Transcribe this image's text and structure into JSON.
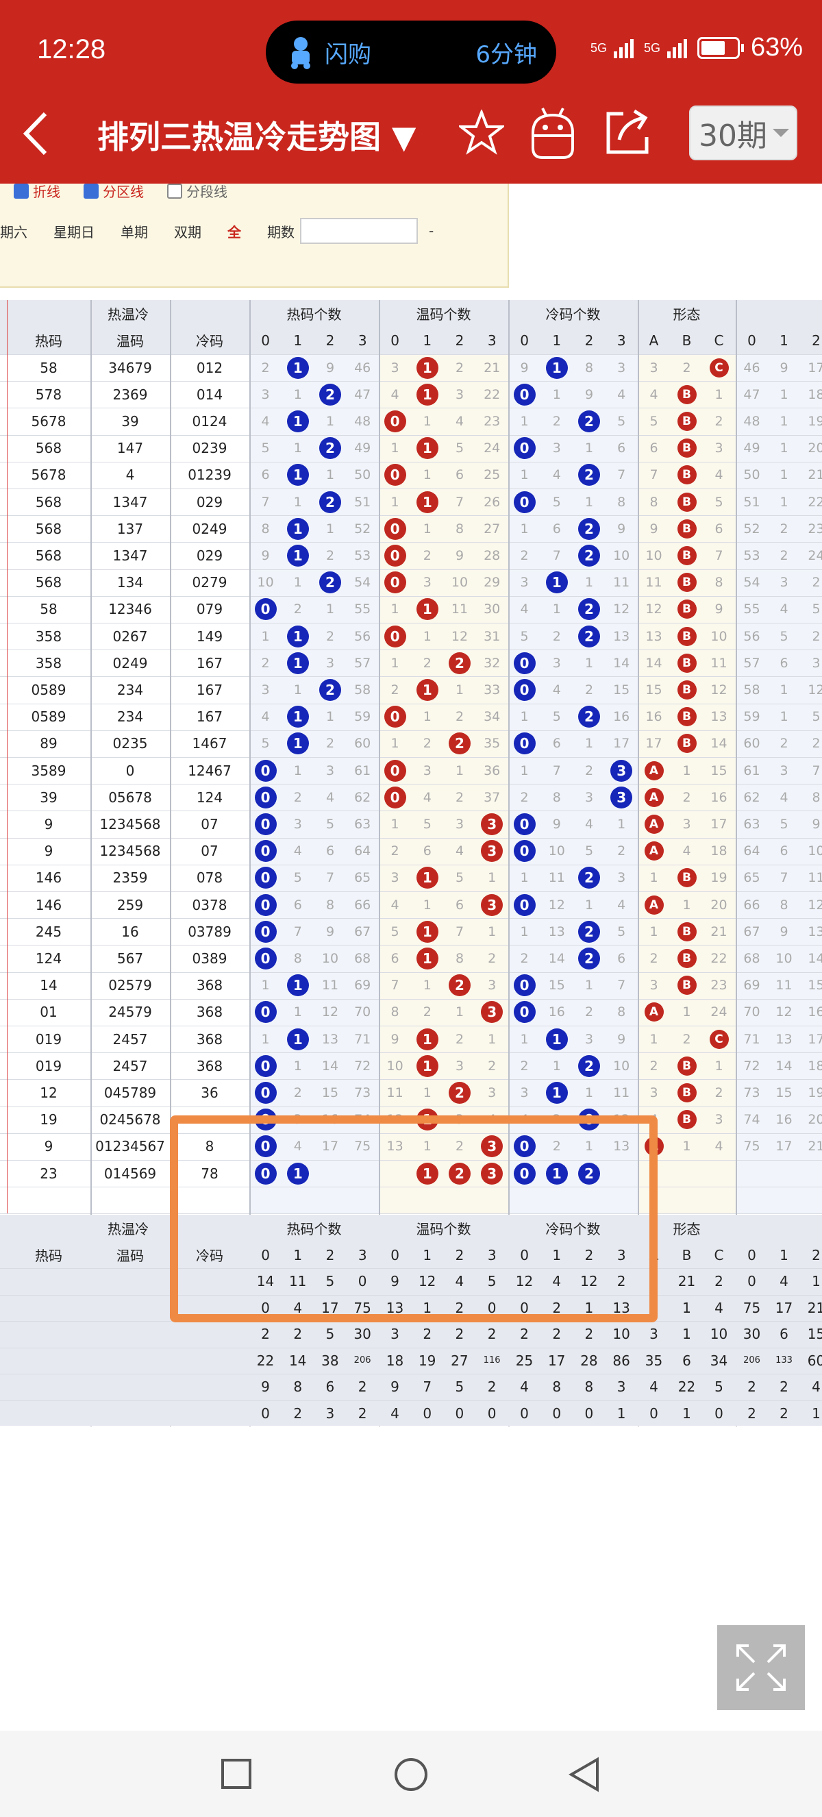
{
  "status": {
    "time": "12:28",
    "pill_app": "闪购",
    "pill_time": "6分钟",
    "battery": "63%",
    "net": "5G"
  },
  "header": {
    "title": "排列三热温冷走势图 ▼",
    "period": "30期"
  },
  "options": {
    "checkboxes": [
      {
        "label": "折线",
        "checked": true
      },
      {
        "label": "分区线",
        "checked": true
      },
      {
        "label": "分段线",
        "checked": false
      }
    ],
    "filters": [
      "期六",
      "星期日",
      "单期",
      "双期",
      "全"
    ],
    "active_filter": "全",
    "period_label": "期数",
    "range_sep": "-"
  },
  "table": {
    "groups": [
      "热温冷",
      "热码个数",
      "温码个数",
      "冷码个数",
      "形态"
    ],
    "col_labels": {
      "hot": "热码",
      "warm": "温码",
      "cold": "冷码",
      "shape": [
        "A",
        "B",
        "C"
      ],
      "digits": [
        "0",
        "1",
        "2",
        "3"
      ]
    },
    "rows": [
      {
        "hot": "58",
        "warm": "34679",
        "cold": "012",
        "hc": [
          "2",
          "1",
          "9",
          "46"
        ],
        "wc": [
          "3",
          "1",
          "2",
          "21"
        ],
        "cc": [
          "9",
          "1",
          "8",
          "3"
        ],
        "sh": [
          "3",
          "2",
          "C"
        ],
        "ex": [
          "46",
          "9",
          "17"
        ],
        "hb": 1,
        "wb": 1,
        "cb": 1,
        "sb": 2
      },
      {
        "hot": "578",
        "warm": "2369",
        "cold": "014",
        "hc": [
          "3",
          "1",
          "2",
          "47"
        ],
        "wc": [
          "4",
          "1",
          "3",
          "22"
        ],
        "cc": [
          "0",
          "1",
          "9",
          "4"
        ],
        "sh": [
          "4",
          "B",
          "1"
        ],
        "ex": [
          "47",
          "1",
          "18"
        ],
        "hb": 2,
        "wb": 1,
        "cb": 0,
        "sb": 1
      },
      {
        "hot": "5678",
        "warm": "39",
        "cold": "0124",
        "hc": [
          "4",
          "1",
          "1",
          "48"
        ],
        "wc": [
          "0",
          "1",
          "4",
          "23"
        ],
        "cc": [
          "1",
          "2",
          "2",
          "5"
        ],
        "sh": [
          "5",
          "B",
          "2"
        ],
        "ex": [
          "48",
          "1",
          "19"
        ],
        "hb": 1,
        "wb": 0,
        "cb": 2,
        "sb": 1
      },
      {
        "hot": "568",
        "warm": "147",
        "cold": "0239",
        "hc": [
          "5",
          "1",
          "2",
          "49"
        ],
        "wc": [
          "1",
          "1",
          "5",
          "24"
        ],
        "cc": [
          "0",
          "3",
          "1",
          "6"
        ],
        "sh": [
          "6",
          "B",
          "3"
        ],
        "ex": [
          "49",
          "1",
          "20"
        ],
        "hb": 2,
        "wb": 1,
        "cb": 0,
        "sb": 1
      },
      {
        "hot": "5678",
        "warm": "4",
        "cold": "01239",
        "hc": [
          "6",
          "1",
          "1",
          "50"
        ],
        "wc": [
          "0",
          "1",
          "6",
          "25"
        ],
        "cc": [
          "1",
          "4",
          "2",
          "7"
        ],
        "sh": [
          "7",
          "B",
          "4"
        ],
        "ex": [
          "50",
          "1",
          "21"
        ],
        "hb": 1,
        "wb": 0,
        "cb": 2,
        "sb": 1
      },
      {
        "hot": "568",
        "warm": "1347",
        "cold": "029",
        "hc": [
          "7",
          "1",
          "2",
          "51"
        ],
        "wc": [
          "1",
          "1",
          "7",
          "26"
        ],
        "cc": [
          "0",
          "5",
          "1",
          "8"
        ],
        "sh": [
          "8",
          "B",
          "5"
        ],
        "ex": [
          "51",
          "1",
          "22"
        ],
        "hb": 2,
        "wb": 1,
        "cb": 0,
        "sb": 1
      },
      {
        "hot": "568",
        "warm": "137",
        "cold": "0249",
        "hc": [
          "8",
          "1",
          "1",
          "52"
        ],
        "wc": [
          "0",
          "1",
          "8",
          "27"
        ],
        "cc": [
          "1",
          "6",
          "2",
          "9"
        ],
        "sh": [
          "9",
          "B",
          "6"
        ],
        "ex": [
          "52",
          "2",
          "23"
        ],
        "hb": 1,
        "wb": 0,
        "cb": 2,
        "sb": 1
      },
      {
        "hot": "568",
        "warm": "1347",
        "cold": "029",
        "hc": [
          "9",
          "1",
          "2",
          "53"
        ],
        "wc": [
          "0",
          "2",
          "9",
          "28"
        ],
        "cc": [
          "2",
          "7",
          "2",
          "10"
        ],
        "sh": [
          "10",
          "B",
          "7"
        ],
        "ex": [
          "53",
          "2",
          "24"
        ],
        "hb": 1,
        "wb": 0,
        "cb": 2,
        "sb": 1
      },
      {
        "hot": "568",
        "warm": "134",
        "cold": "0279",
        "hc": [
          "10",
          "1",
          "2",
          "54"
        ],
        "wc": [
          "0",
          "3",
          "10",
          "29"
        ],
        "cc": [
          "3",
          "1",
          "1",
          "11"
        ],
        "sh": [
          "11",
          "B",
          "8"
        ],
        "ex": [
          "54",
          "3",
          "2"
        ],
        "hb": 2,
        "wb": 0,
        "cb": 1,
        "sb": 1
      },
      {
        "hot": "58",
        "warm": "12346",
        "cold": "079",
        "hc": [
          "0",
          "2",
          "1",
          "55"
        ],
        "wc": [
          "1",
          "1",
          "11",
          "30"
        ],
        "cc": [
          "4",
          "1",
          "2",
          "12"
        ],
        "sh": [
          "12",
          "B",
          "9"
        ],
        "ex": [
          "55",
          "4",
          "5"
        ],
        "hb": 0,
        "wb": 1,
        "cb": 2,
        "sb": 1
      },
      {
        "hot": "358",
        "warm": "0267",
        "cold": "149",
        "hc": [
          "1",
          "1",
          "2",
          "56"
        ],
        "wc": [
          "0",
          "1",
          "12",
          "31"
        ],
        "cc": [
          "5",
          "2",
          "2",
          "13"
        ],
        "sh": [
          "13",
          "B",
          "10"
        ],
        "ex": [
          "56",
          "5",
          "2"
        ],
        "hb": 1,
        "wb": 0,
        "cb": 2,
        "sb": 1
      },
      {
        "hot": "358",
        "warm": "0249",
        "cold": "167",
        "hc": [
          "2",
          "1",
          "3",
          "57"
        ],
        "wc": [
          "1",
          "2",
          "2",
          "32"
        ],
        "cc": [
          "0",
          "3",
          "1",
          "14"
        ],
        "sh": [
          "14",
          "B",
          "11"
        ],
        "ex": [
          "57",
          "6",
          "3"
        ],
        "hb": 1,
        "wb": 2,
        "cb": 0,
        "sb": 1
      },
      {
        "hot": "0589",
        "warm": "234",
        "cold": "167",
        "hc": [
          "3",
          "1",
          "2",
          "58"
        ],
        "wc": [
          "2",
          "1",
          "1",
          "33"
        ],
        "cc": [
          "0",
          "4",
          "2",
          "15"
        ],
        "sh": [
          "15",
          "B",
          "12"
        ],
        "ex": [
          "58",
          "1",
          "12"
        ],
        "hb": 2,
        "wb": 1,
        "cb": 0,
        "sb": 1
      },
      {
        "hot": "0589",
        "warm": "234",
        "cold": "167",
        "hc": [
          "4",
          "1",
          "1",
          "59"
        ],
        "wc": [
          "0",
          "1",
          "2",
          "34"
        ],
        "cc": [
          "1",
          "5",
          "2",
          "16"
        ],
        "sh": [
          "16",
          "B",
          "13"
        ],
        "ex": [
          "59",
          "1",
          "5"
        ],
        "hb": 1,
        "wb": 0,
        "cb": 2,
        "sb": 1
      },
      {
        "hot": "89",
        "warm": "0235",
        "cold": "1467",
        "hc": [
          "5",
          "1",
          "2",
          "60"
        ],
        "wc": [
          "1",
          "2",
          "2",
          "35"
        ],
        "cc": [
          "0",
          "6",
          "1",
          "17"
        ],
        "sh": [
          "17",
          "B",
          "14"
        ],
        "ex": [
          "60",
          "2",
          "2"
        ],
        "hb": 1,
        "wb": 2,
        "cb": 0,
        "sb": 1
      },
      {
        "hot": "3589",
        "warm": "0",
        "cold": "12467",
        "hc": [
          "0",
          "1",
          "3",
          "61"
        ],
        "wc": [
          "0",
          "3",
          "1",
          "36"
        ],
        "cc": [
          "1",
          "7",
          "2",
          "3"
        ],
        "sh": [
          "A",
          "1",
          "15"
        ],
        "ex": [
          "61",
          "3",
          "7"
        ],
        "hb": 0,
        "wb": 0,
        "cb": 3,
        "sb": 0
      },
      {
        "hot": "39",
        "warm": "05678",
        "cold": "124",
        "hc": [
          "0",
          "2",
          "4",
          "62"
        ],
        "wc": [
          "0",
          "4",
          "2",
          "37"
        ],
        "cc": [
          "2",
          "8",
          "3",
          "3"
        ],
        "sh": [
          "A",
          "2",
          "16"
        ],
        "ex": [
          "62",
          "4",
          "8"
        ],
        "hb": 0,
        "wb": 0,
        "cb": 3,
        "sb": 0
      },
      {
        "hot": "9",
        "warm": "1234568",
        "cold": "07",
        "hc": [
          "0",
          "3",
          "5",
          "63"
        ],
        "wc": [
          "1",
          "5",
          "3",
          "3"
        ],
        "cc": [
          "0",
          "9",
          "4",
          "1"
        ],
        "sh": [
          "A",
          "3",
          "17"
        ],
        "ex": [
          "63",
          "5",
          "9"
        ],
        "hb": 0,
        "wb": 3,
        "cb": 0,
        "sb": 0
      },
      {
        "hot": "9",
        "warm": "1234568",
        "cold": "07",
        "hc": [
          "0",
          "4",
          "6",
          "64"
        ],
        "wc": [
          "2",
          "6",
          "4",
          "3"
        ],
        "cc": [
          "0",
          "10",
          "5",
          "2"
        ],
        "sh": [
          "A",
          "4",
          "18"
        ],
        "ex": [
          "64",
          "6",
          "10"
        ],
        "hb": 0,
        "wb": 3,
        "cb": 0,
        "sb": 0
      },
      {
        "hot": "146",
        "warm": "2359",
        "cold": "078",
        "hc": [
          "0",
          "5",
          "7",
          "65"
        ],
        "wc": [
          "3",
          "1",
          "5",
          "1"
        ],
        "cc": [
          "1",
          "11",
          "2",
          "3"
        ],
        "sh": [
          "1",
          "B",
          "19"
        ],
        "ex": [
          "65",
          "7",
          "11"
        ],
        "hb": 0,
        "wb": 1,
        "cb": 2,
        "sb": 1
      },
      {
        "hot": "146",
        "warm": "259",
        "cold": "0378",
        "hc": [
          "0",
          "6",
          "8",
          "66"
        ],
        "wc": [
          "4",
          "1",
          "6",
          "3"
        ],
        "cc": [
          "0",
          "12",
          "1",
          "4"
        ],
        "sh": [
          "A",
          "1",
          "20"
        ],
        "ex": [
          "66",
          "8",
          "12"
        ],
        "hb": 0,
        "wb": 3,
        "cb": 0,
        "sb": 0
      },
      {
        "hot": "245",
        "warm": "16",
        "cold": "03789",
        "hc": [
          "0",
          "7",
          "9",
          "67"
        ],
        "wc": [
          "5",
          "1",
          "7",
          "1"
        ],
        "cc": [
          "1",
          "13",
          "2",
          "5"
        ],
        "sh": [
          "1",
          "B",
          "21"
        ],
        "ex": [
          "67",
          "9",
          "13"
        ],
        "hb": 0,
        "wb": 1,
        "cb": 2,
        "sb": 1
      },
      {
        "hot": "124",
        "warm": "567",
        "cold": "0389",
        "hc": [
          "0",
          "8",
          "10",
          "68"
        ],
        "wc": [
          "6",
          "1",
          "8",
          "2"
        ],
        "cc": [
          "2",
          "14",
          "2",
          "6"
        ],
        "sh": [
          "2",
          "B",
          "22"
        ],
        "ex": [
          "68",
          "10",
          "14"
        ],
        "hb": 0,
        "wb": 1,
        "cb": 2,
        "sb": 1
      },
      {
        "hot": "14",
        "warm": "02579",
        "cold": "368",
        "hc": [
          "1",
          "1",
          "11",
          "69"
        ],
        "wc": [
          "7",
          "1",
          "2",
          "3"
        ],
        "cc": [
          "0",
          "15",
          "1",
          "7"
        ],
        "sh": [
          "3",
          "B",
          "23"
        ],
        "ex": [
          "69",
          "11",
          "15"
        ],
        "hb": 1,
        "wb": 2,
        "cb": 0,
        "sb": 1
      },
      {
        "hot": "01",
        "warm": "24579",
        "cold": "368",
        "hc": [
          "0",
          "1",
          "12",
          "70"
        ],
        "wc": [
          "8",
          "2",
          "1",
          "3"
        ],
        "cc": [
          "0",
          "16",
          "2",
          "8"
        ],
        "sh": [
          "A",
          "1",
          "24"
        ],
        "ex": [
          "70",
          "12",
          "16"
        ],
        "hb": 0,
        "wb": 3,
        "cb": 0,
        "sb": 0
      },
      {
        "hot": "019",
        "warm": "2457",
        "cold": "368",
        "hc": [
          "1",
          "1",
          "13",
          "71"
        ],
        "wc": [
          "9",
          "1",
          "2",
          "1"
        ],
        "cc": [
          "1",
          "1",
          "3",
          "9"
        ],
        "sh": [
          "1",
          "2",
          "C"
        ],
        "ex": [
          "71",
          "13",
          "17"
        ],
        "hb": 1,
        "wb": 1,
        "cb": 1,
        "sb": 2
      },
      {
        "hot": "019",
        "warm": "2457",
        "cold": "368",
        "hc": [
          "0",
          "1",
          "14",
          "72"
        ],
        "wc": [
          "10",
          "1",
          "3",
          "2"
        ],
        "cc": [
          "2",
          "1",
          "2",
          "10"
        ],
        "sh": [
          "2",
          "B",
          "1"
        ],
        "ex": [
          "72",
          "14",
          "18"
        ],
        "hb": 0,
        "wb": 1,
        "cb": 2,
        "sb": 1
      },
      {
        "hot": "12",
        "warm": "045789",
        "cold": "36",
        "hc": [
          "0",
          "2",
          "15",
          "73"
        ],
        "wc": [
          "11",
          "1",
          "2",
          "3"
        ],
        "cc": [
          "3",
          "1",
          "1",
          "11"
        ],
        "sh": [
          "3",
          "B",
          "2"
        ],
        "ex": [
          "73",
          "15",
          "19"
        ],
        "hb": 0,
        "wb": 2,
        "cb": 1,
        "sb": 1
      },
      {
        "hot": "19",
        "warm": "0245678",
        "cold": "",
        "hc": [
          "0",
          "3",
          "16",
          "74"
        ],
        "wc": [
          "12",
          "1",
          "3",
          "4"
        ],
        "cc": [
          "4",
          "2",
          "0",
          "12"
        ],
        "sh": [
          "4",
          "B",
          "3"
        ],
        "ex": [
          "74",
          "16",
          "20"
        ],
        "hb": 0,
        "wb": 1,
        "cb": 2,
        "sb": 1
      },
      {
        "hot": "9",
        "warm": "01234567",
        "cold": "8",
        "hc": [
          "0",
          "4",
          "17",
          "75"
        ],
        "wc": [
          "13",
          "1",
          "2",
          "3"
        ],
        "cc": [
          "0",
          "2",
          "1",
          "13"
        ],
        "sh": [
          "A",
          "1",
          "4"
        ],
        "ex": [
          "75",
          "17",
          "21"
        ],
        "hb": 0,
        "wb": 3,
        "cb": 0,
        "sb": 0
      },
      {
        "hot": "23",
        "warm": "014569",
        "cold": "78",
        "balls": {
          "hot": [
            "0",
            "1"
          ],
          "warm": [
            "1",
            "2",
            "3"
          ],
          "cold": [
            "0",
            "1",
            "2"
          ]
        }
      }
    ],
    "stats": [
      [
        "14",
        "11",
        "5",
        "0",
        "9",
        "12",
        "4",
        "5",
        "12",
        "4",
        "12",
        "2",
        "7",
        "21",
        "2",
        "0",
        "4",
        "1"
      ],
      [
        "0",
        "4",
        "17",
        "75",
        "13",
        "1",
        "2",
        "0",
        "0",
        "2",
        "1",
        "13",
        "1",
        "1",
        "4",
        "75",
        "17",
        "21"
      ],
      [
        "2",
        "2",
        "5",
        "30",
        "3",
        "2",
        "2",
        "2",
        "2",
        "2",
        "2",
        "10",
        "3",
        "1",
        "10",
        "30",
        "6",
        "15"
      ],
      [
        "22",
        "14",
        "38",
        "206",
        "18",
        "19",
        "27",
        "116",
        "25",
        "17",
        "28",
        "86",
        "35",
        "6",
        "34",
        "206",
        "133",
        "60"
      ],
      [
        "9",
        "8",
        "6",
        "2",
        "9",
        "7",
        "5",
        "2",
        "4",
        "8",
        "8",
        "3",
        "4",
        "22",
        "5",
        "2",
        "2",
        "4"
      ],
      [
        "0",
        "2",
        "3",
        "2",
        "4",
        "0",
        "0",
        "0",
        "0",
        "0",
        "0",
        "1",
        "0",
        "1",
        "0",
        "2",
        "2",
        "1"
      ]
    ]
  },
  "icons": {
    "back": "back-icon",
    "star": "star-icon",
    "robot": "android-icon",
    "share": "share-icon",
    "fullscreen": "fullscreen-icon"
  },
  "colors": {
    "header": "#c9261e",
    "blue_ball": "#1626b8",
    "red_ball": "#c0281f",
    "highlight": "#ef8a45"
  }
}
